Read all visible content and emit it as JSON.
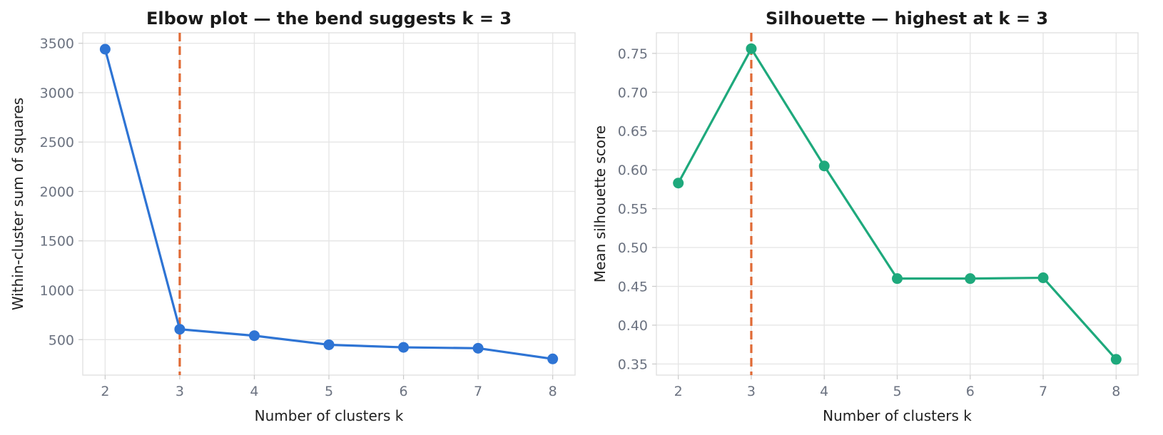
{
  "chart_data": [
    {
      "type": "line",
      "title": "Elbow plot — the bend suggests k = 3",
      "xlabel": "Number of clusters k",
      "ylabel": "Within-cluster sum of squares",
      "x": [
        2,
        3,
        4,
        5,
        6,
        7,
        8
      ],
      "xticks": [
        "2",
        "3",
        "4",
        "5",
        "6",
        "7",
        "8"
      ],
      "xlim": [
        1.7,
        8.3
      ],
      "series": [
        {
          "values": [
            3440,
            605,
            540,
            448,
            422,
            413,
            305
          ],
          "color": "#2e74d4"
        }
      ],
      "yticks": [
        500,
        1000,
        1500,
        2000,
        2500,
        3000,
        3500
      ],
      "ytick_labels": [
        "500",
        "1000",
        "1500",
        "2000",
        "2500",
        "3000",
        "3500"
      ],
      "ylim": [
        141,
        3606
      ],
      "vline": {
        "x": 3,
        "color": "#e06a35",
        "style": "dashed"
      },
      "grid": true
    },
    {
      "type": "line",
      "title": "Silhouette — highest at k = 3",
      "xlabel": "Number of clusters k",
      "ylabel": "Mean silhouette score",
      "x": [
        2,
        3,
        4,
        5,
        6,
        7,
        8
      ],
      "xticks": [
        "2",
        "3",
        "4",
        "5",
        "6",
        "7",
        "8"
      ],
      "xlim": [
        1.7,
        8.3
      ],
      "series": [
        {
          "values": [
            0.583,
            0.756,
            0.605,
            0.46,
            0.46,
            0.461,
            0.356
          ],
          "color": "#1ea97c"
        }
      ],
      "yticks": [
        0.35,
        0.4,
        0.45,
        0.5,
        0.55,
        0.6,
        0.65,
        0.7,
        0.75
      ],
      "ytick_labels": [
        "0.35",
        "0.40",
        "0.45",
        "0.50",
        "0.55",
        "0.60",
        "0.65",
        "0.70",
        "0.75"
      ],
      "ylim": [
        0.3357,
        0.7765
      ],
      "vline": {
        "x": 3,
        "color": "#e06a35",
        "style": "dashed"
      },
      "grid": true
    }
  ]
}
